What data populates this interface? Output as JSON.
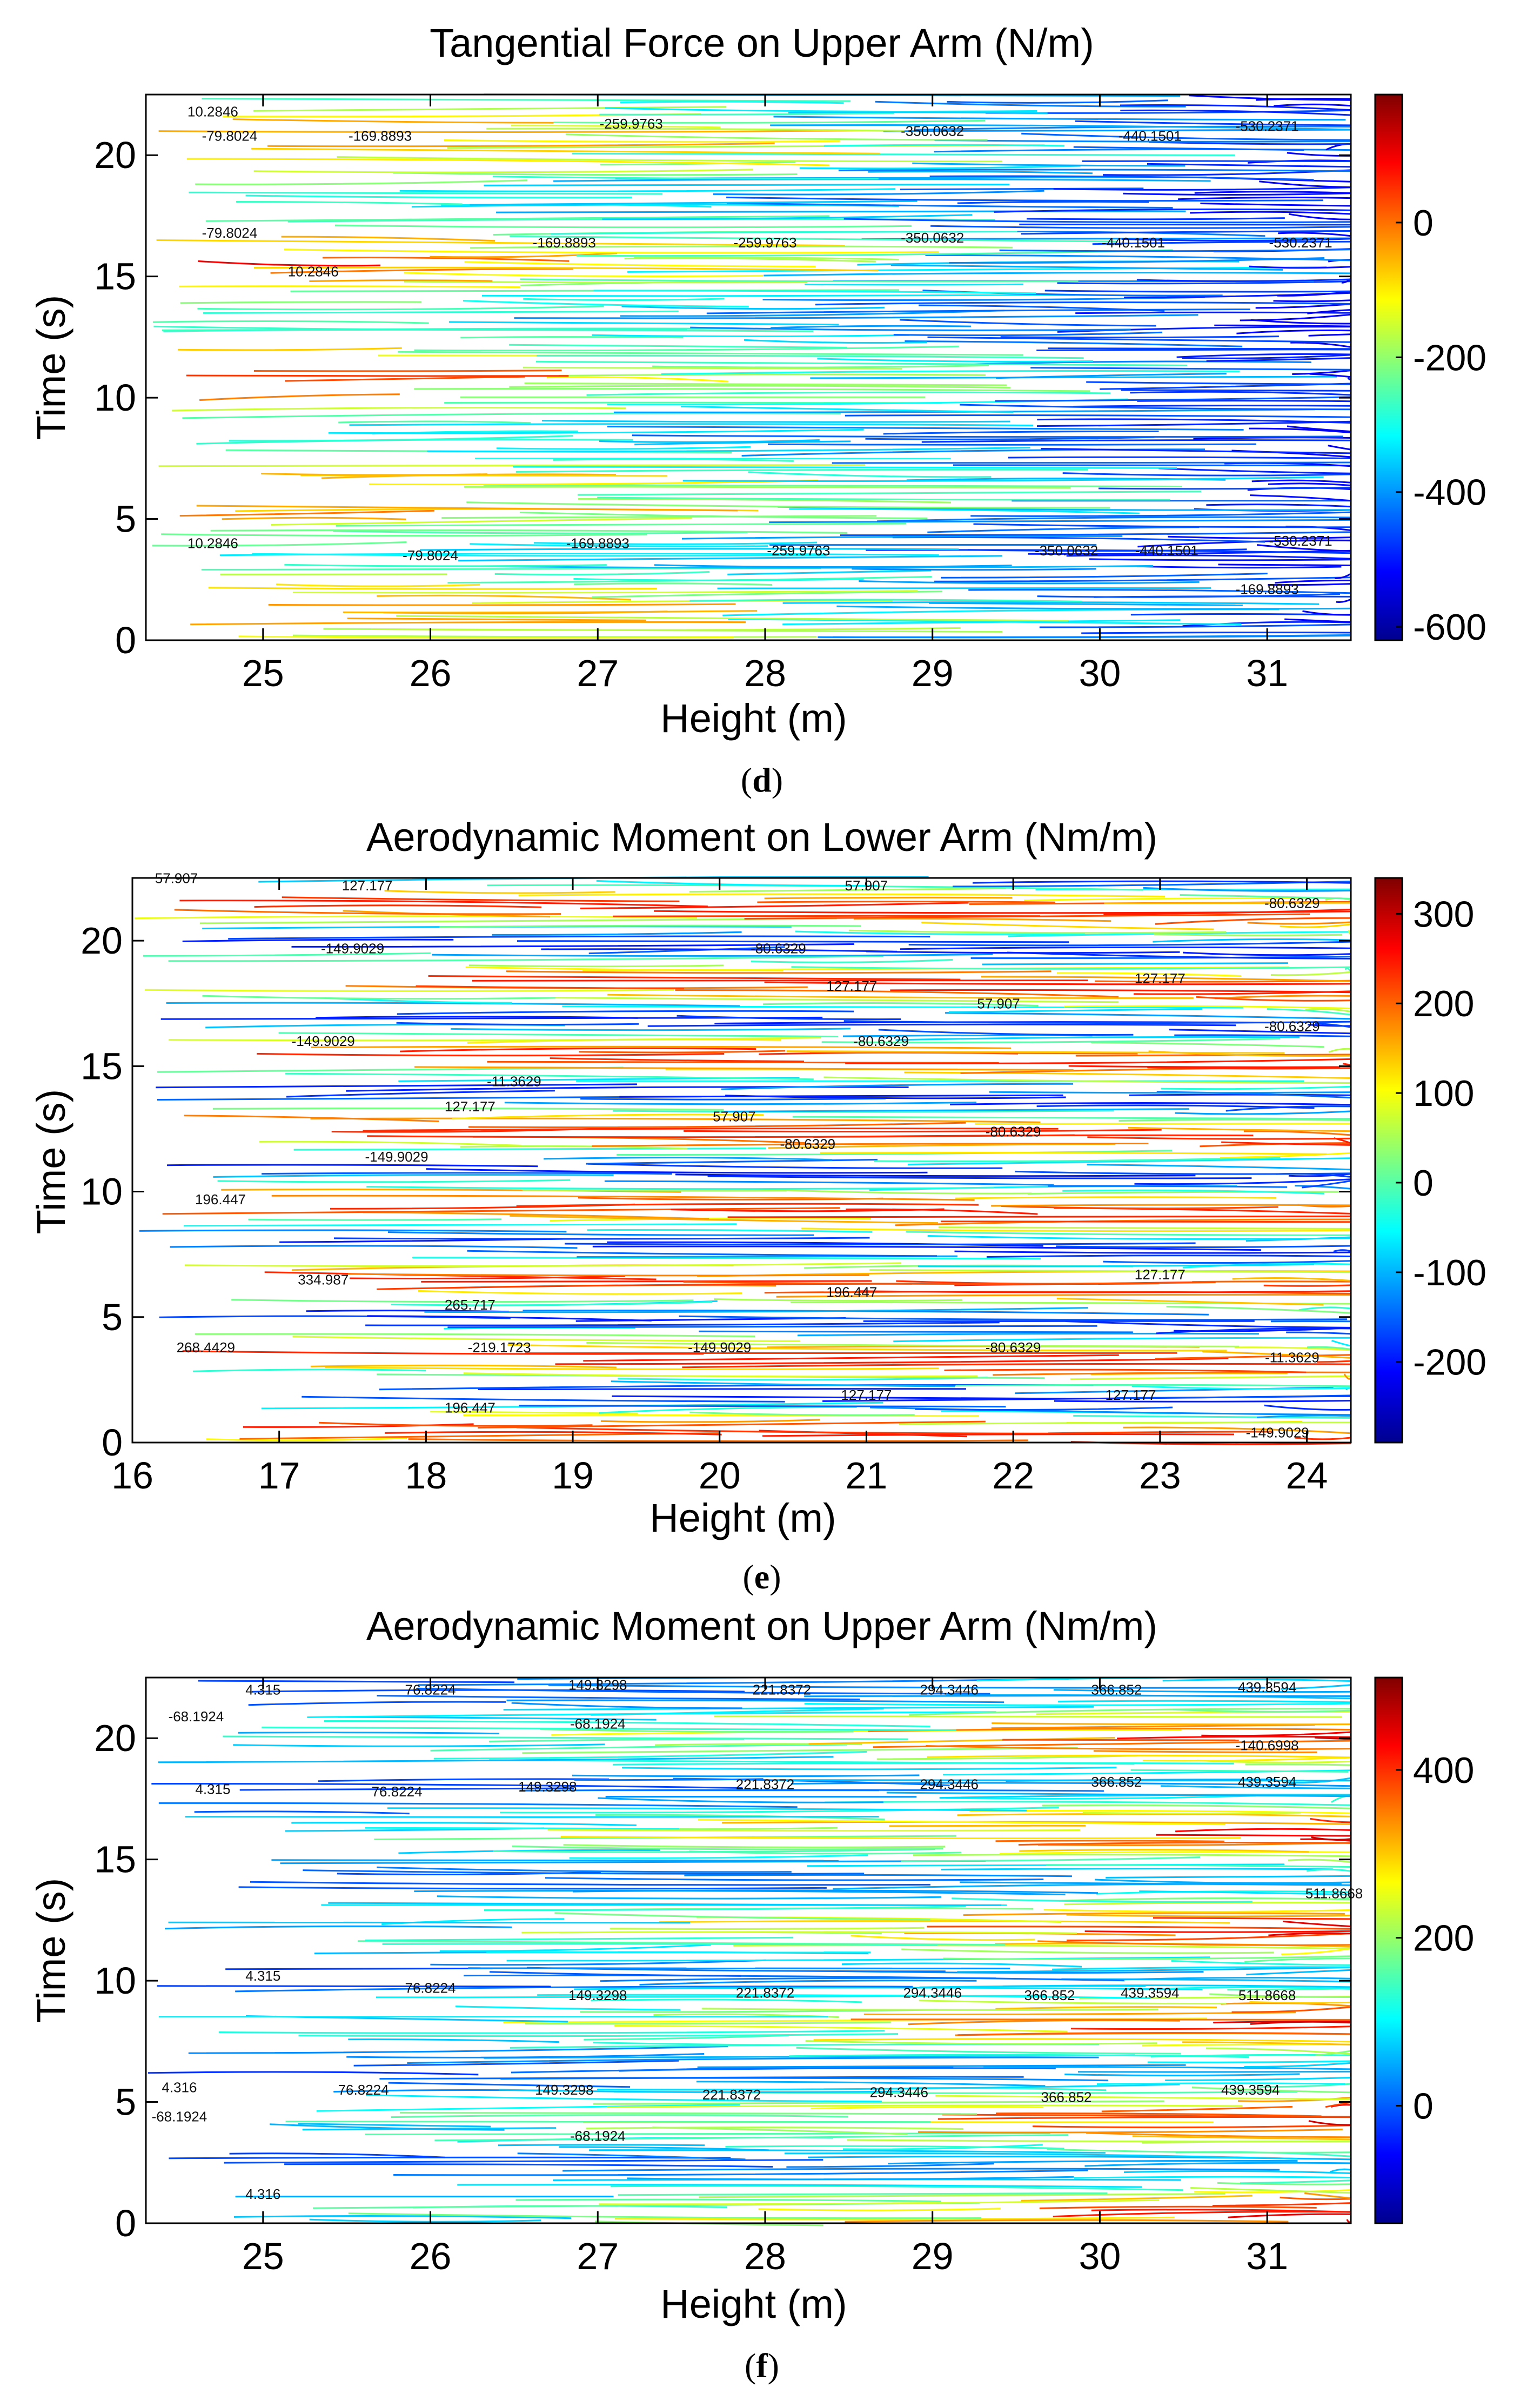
{
  "chart_data": [
    {
      "type": "contour",
      "panel_label": "d",
      "title": "Tangential Force on Upper Arm (N/m)",
      "xlabel": "Height (m)",
      "ylabel": "Time (s)",
      "xlim": [
        24.3,
        31.5
      ],
      "ylim": [
        0,
        22.5
      ],
      "xticks": [
        "25",
        "26",
        "27",
        "28",
        "29",
        "30",
        "31"
      ],
      "yticks": [
        "0",
        "5",
        "10",
        "15",
        "20"
      ],
      "colorbar": {
        "range": [
          -620,
          190
        ],
        "ticks": [
          "0",
          "-200",
          "-400",
          "-600"
        ],
        "tick_values": [
          0,
          -200,
          -400,
          -600
        ]
      },
      "contour_labels": [
        {
          "text": "10.2846",
          "x": 24.7,
          "y": 21.6
        },
        {
          "text": "-79.8024",
          "x": 24.8,
          "y": 20.6
        },
        {
          "text": "-169.8893",
          "x": 25.7,
          "y": 20.6
        },
        {
          "text": "-259.9763",
          "x": 27.2,
          "y": 21.1
        },
        {
          "text": "-350.0632",
          "x": 29.0,
          "y": 20.8
        },
        {
          "text": "-440.1501",
          "x": 30.3,
          "y": 20.6
        },
        {
          "text": "-530.2371",
          "x": 31.0,
          "y": 21.0
        },
        {
          "text": "-79.8024",
          "x": 24.8,
          "y": 16.6
        },
        {
          "text": "10.2846",
          "x": 25.3,
          "y": 15.0
        },
        {
          "text": "-169.8893",
          "x": 26.8,
          "y": 16.2
        },
        {
          "text": "-259.9763",
          "x": 28.0,
          "y": 16.2
        },
        {
          "text": "-350.0632",
          "x": 29.0,
          "y": 16.4
        },
        {
          "text": "-440.1501",
          "x": 30.2,
          "y": 16.2
        },
        {
          "text": "-530.2371",
          "x": 31.2,
          "y": 16.2
        },
        {
          "text": "10.2846",
          "x": 24.7,
          "y": 3.8
        },
        {
          "text": "-79.8024",
          "x": 26.0,
          "y": 3.3
        },
        {
          "text": "-169.8893",
          "x": 27.0,
          "y": 3.8
        },
        {
          "text": "-259.9763",
          "x": 28.2,
          "y": 3.5
        },
        {
          "text": "-350.0632",
          "x": 29.8,
          "y": 3.5
        },
        {
          "text": "-440.1501",
          "x": 30.4,
          "y": 3.5
        },
        {
          "text": "-530.2371",
          "x": 31.2,
          "y": 3.9
        },
        {
          "text": "-169.8893",
          "x": 31.0,
          "y": 1.9
        }
      ]
    },
    {
      "type": "contour",
      "panel_label": "e",
      "title": "Aerodynamic Moment on Lower Arm (Nm/m)",
      "xlabel": "Height (m)",
      "ylabel": "Time (s)",
      "xlim": [
        16,
        24.3
      ],
      "ylim": [
        0,
        22.5
      ],
      "xticks": [
        "16",
        "17",
        "18",
        "19",
        "20",
        "21",
        "22",
        "23",
        "24"
      ],
      "yticks": [
        "0",
        "5",
        "10",
        "15",
        "20"
      ],
      "colorbar": {
        "range": [
          -290,
          340
        ],
        "ticks": [
          "300",
          "200",
          "100",
          "0",
          "-100",
          "-200"
        ],
        "tick_values": [
          300,
          200,
          100,
          0,
          -100,
          -200
        ]
      },
      "contour_labels": [
        {
          "text": "57.907",
          "x": 16.3,
          "y": 22.3
        },
        {
          "text": "127.177",
          "x": 17.6,
          "y": 22.0
        },
        {
          "text": "57.907",
          "x": 21.0,
          "y": 22.0
        },
        {
          "text": "-80.6329",
          "x": 23.9,
          "y": 21.3
        },
        {
          "text": "-149.9029",
          "x": 17.5,
          "y": 19.5
        },
        {
          "text": "-80.6329",
          "x": 20.4,
          "y": 19.5
        },
        {
          "text": "127.177",
          "x": 20.9,
          "y": 18.0
        },
        {
          "text": "127.177",
          "x": 23.0,
          "y": 18.3
        },
        {
          "text": "57.907",
          "x": 21.9,
          "y": 17.3
        },
        {
          "text": "-149.9029",
          "x": 17.3,
          "y": 15.8
        },
        {
          "text": "-80.6329",
          "x": 21.1,
          "y": 15.8
        },
        {
          "text": "-80.6329",
          "x": 23.9,
          "y": 16.4
        },
        {
          "text": "-11.3629",
          "x": 18.6,
          "y": 14.2
        },
        {
          "text": "127.177",
          "x": 18.3,
          "y": 13.2
        },
        {
          "text": "57.907",
          "x": 20.1,
          "y": 12.8
        },
        {
          "text": "-80.6329",
          "x": 20.6,
          "y": 11.7
        },
        {
          "text": "-80.6329",
          "x": 22.0,
          "y": 12.2
        },
        {
          "text": "-149.9029",
          "x": 17.8,
          "y": 11.2
        },
        {
          "text": "196.447",
          "x": 16.6,
          "y": 9.5
        },
        {
          "text": "334.987",
          "x": 17.3,
          "y": 6.3
        },
        {
          "text": "265.717",
          "x": 18.3,
          "y": 5.3
        },
        {
          "text": "196.447",
          "x": 20.9,
          "y": 5.8
        },
        {
          "text": "127.177",
          "x": 23.0,
          "y": 6.5
        },
        {
          "text": "268.4429",
          "x": 16.5,
          "y": 3.6
        },
        {
          "text": "-219.1723",
          "x": 18.5,
          "y": 3.6
        },
        {
          "text": "-149.9029",
          "x": 20.0,
          "y": 3.6
        },
        {
          "text": "-80.6329",
          "x": 22.0,
          "y": 3.6
        },
        {
          "text": "-11.3629",
          "x": 23.9,
          "y": 3.2
        },
        {
          "text": "196.447",
          "x": 18.3,
          "y": 1.2
        },
        {
          "text": "127.177",
          "x": 21.0,
          "y": 1.7
        },
        {
          "text": "127.177",
          "x": 22.8,
          "y": 1.7
        },
        {
          "text": "-149.9029",
          "x": 23.8,
          "y": 0.2
        }
      ]
    },
    {
      "type": "contour",
      "panel_label": "f",
      "title": "Aerodynamic Moment on Upper Arm (Nm/m)",
      "xlabel": "Height (m)",
      "ylabel": "Time (s)",
      "xlim": [
        24.3,
        31.5
      ],
      "ylim": [
        0,
        22.5
      ],
      "xticks": [
        "25",
        "26",
        "27",
        "28",
        "29",
        "30",
        "31"
      ],
      "yticks": [
        "0",
        "5",
        "10",
        "15",
        "20"
      ],
      "colorbar": {
        "range": [
          -140,
          510
        ],
        "ticks": [
          "400",
          "200",
          "0"
        ],
        "tick_values": [
          400,
          200,
          0
        ]
      },
      "contour_labels": [
        {
          "text": "4.315",
          "x": 25.0,
          "y": 21.8
        },
        {
          "text": "-68.1924",
          "x": 24.6,
          "y": 20.7
        },
        {
          "text": "76.8224",
          "x": 26.0,
          "y": 21.8
        },
        {
          "text": "149.3298",
          "x": 27.0,
          "y": 22.0
        },
        {
          "text": "221.8372",
          "x": 28.1,
          "y": 21.8
        },
        {
          "text": "294.3446",
          "x": 29.1,
          "y": 21.8
        },
        {
          "text": "366.852",
          "x": 30.1,
          "y": 21.8
        },
        {
          "text": "439.3594",
          "x": 31.0,
          "y": 21.9
        },
        {
          "text": "-68.1924",
          "x": 27.0,
          "y": 20.4
        },
        {
          "text": "-140.6998",
          "x": 31.0,
          "y": 19.5
        },
        {
          "text": "4.315",
          "x": 24.7,
          "y": 17.7
        },
        {
          "text": "76.8224",
          "x": 25.8,
          "y": 17.6
        },
        {
          "text": "149.3298",
          "x": 26.7,
          "y": 17.8
        },
        {
          "text": "221.8372",
          "x": 28.0,
          "y": 17.9
        },
        {
          "text": "294.3446",
          "x": 29.1,
          "y": 17.9
        },
        {
          "text": "366.852",
          "x": 30.1,
          "y": 18.0
        },
        {
          "text": "439.3594",
          "x": 31.0,
          "y": 18.0
        },
        {
          "text": "511.8668",
          "x": 31.4,
          "y": 13.4
        },
        {
          "text": "4.315",
          "x": 25.0,
          "y": 10.0
        },
        {
          "text": "76.8224",
          "x": 26.0,
          "y": 9.5
        },
        {
          "text": "149.3298",
          "x": 27.0,
          "y": 9.2
        },
        {
          "text": "221.8372",
          "x": 28.0,
          "y": 9.3
        },
        {
          "text": "294.3446",
          "x": 29.0,
          "y": 9.3
        },
        {
          "text": "366.852",
          "x": 29.7,
          "y": 9.2
        },
        {
          "text": "439.3594",
          "x": 30.3,
          "y": 9.3
        },
        {
          "text": "511.8668",
          "x": 31.0,
          "y": 9.2
        },
        {
          "text": "4.316",
          "x": 24.5,
          "y": 5.4
        },
        {
          "text": "-68.1924",
          "x": 24.5,
          "y": 4.2
        },
        {
          "text": "76.8224",
          "x": 25.6,
          "y": 5.3
        },
        {
          "text": "149.3298",
          "x": 26.8,
          "y": 5.3
        },
        {
          "text": "221.8372",
          "x": 27.8,
          "y": 5.1
        },
        {
          "text": "294.3446",
          "x": 28.8,
          "y": 5.2
        },
        {
          "text": "366.852",
          "x": 29.8,
          "y": 5.0
        },
        {
          "text": "439.3594",
          "x": 30.9,
          "y": 5.3
        },
        {
          "text": "-68.1924",
          "x": 27.0,
          "y": 3.4
        },
        {
          "text": "4.316",
          "x": 25.0,
          "y": 1.0
        }
      ]
    }
  ]
}
